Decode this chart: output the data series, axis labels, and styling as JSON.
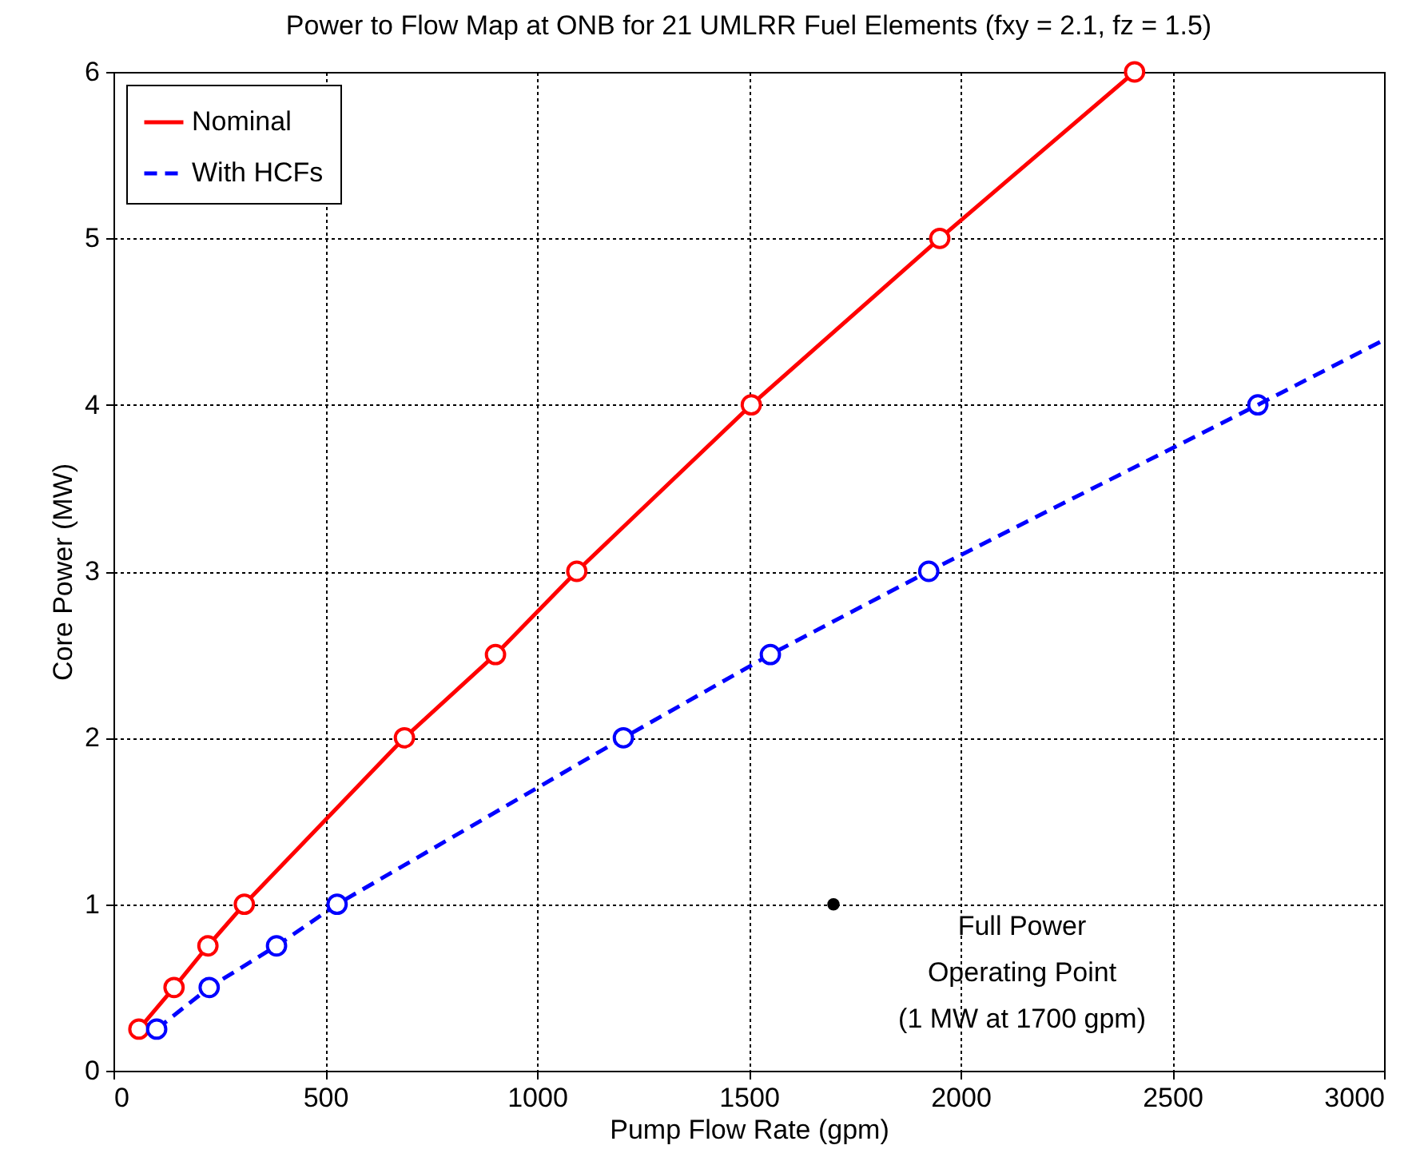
{
  "chart_data": {
    "type": "line",
    "title": "Power to Flow Map at ONB for 21 UMLRR Fuel Elements (fxy = 2.1, fz = 1.5)",
    "xlabel": "Pump Flow Rate (gpm)",
    "ylabel": "Core Power (MW)",
    "xlim": [
      0,
      3000
    ],
    "xticks": [
      0,
      500,
      1000,
      1500,
      2000,
      2500,
      3000
    ],
    "ylim": [
      0,
      6
    ],
    "yticks": [
      0,
      1,
      2,
      3,
      4,
      5,
      6
    ],
    "grid": true,
    "legend": "top left",
    "series": [
      {
        "name": "Nominal",
        "color": "#ff0000",
        "line_style": "solid",
        "marker": "circle",
        "x": [
          60,
          143,
          223,
          309,
          687,
          902,
          1094,
          1506,
          1951,
          2411
        ],
        "values": [
          0.25,
          0.5,
          0.75,
          1,
          2,
          2.5,
          3,
          4,
          5,
          6
        ]
      },
      {
        "name": "With HCFs",
        "color": "#0000ff",
        "line_style": "dashed",
        "marker": "circle",
        "x": [
          102,
          226,
          385,
          528,
          1204,
          1551,
          1925,
          2702
        ],
        "values": [
          0.25,
          0.5,
          0.75,
          1,
          2,
          2.5,
          3,
          4
        ]
      },
      {
        "color": "#0000ff",
        "line_style": "dashed",
        "marker": "none",
        "x": [
          2702,
          3000
        ],
        "values": [
          4,
          4.39
        ]
      },
      {
        "type": "scatter",
        "color": "#000000",
        "marker": "circle",
        "x": [
          1700
        ],
        "values": [
          1
        ]
      }
    ],
    "annotations": [
      {
        "text": "Full Power\nOperating Point\n(1 MW at 1700 gpm)",
        "x": 1700,
        "y": 1
      }
    ]
  }
}
